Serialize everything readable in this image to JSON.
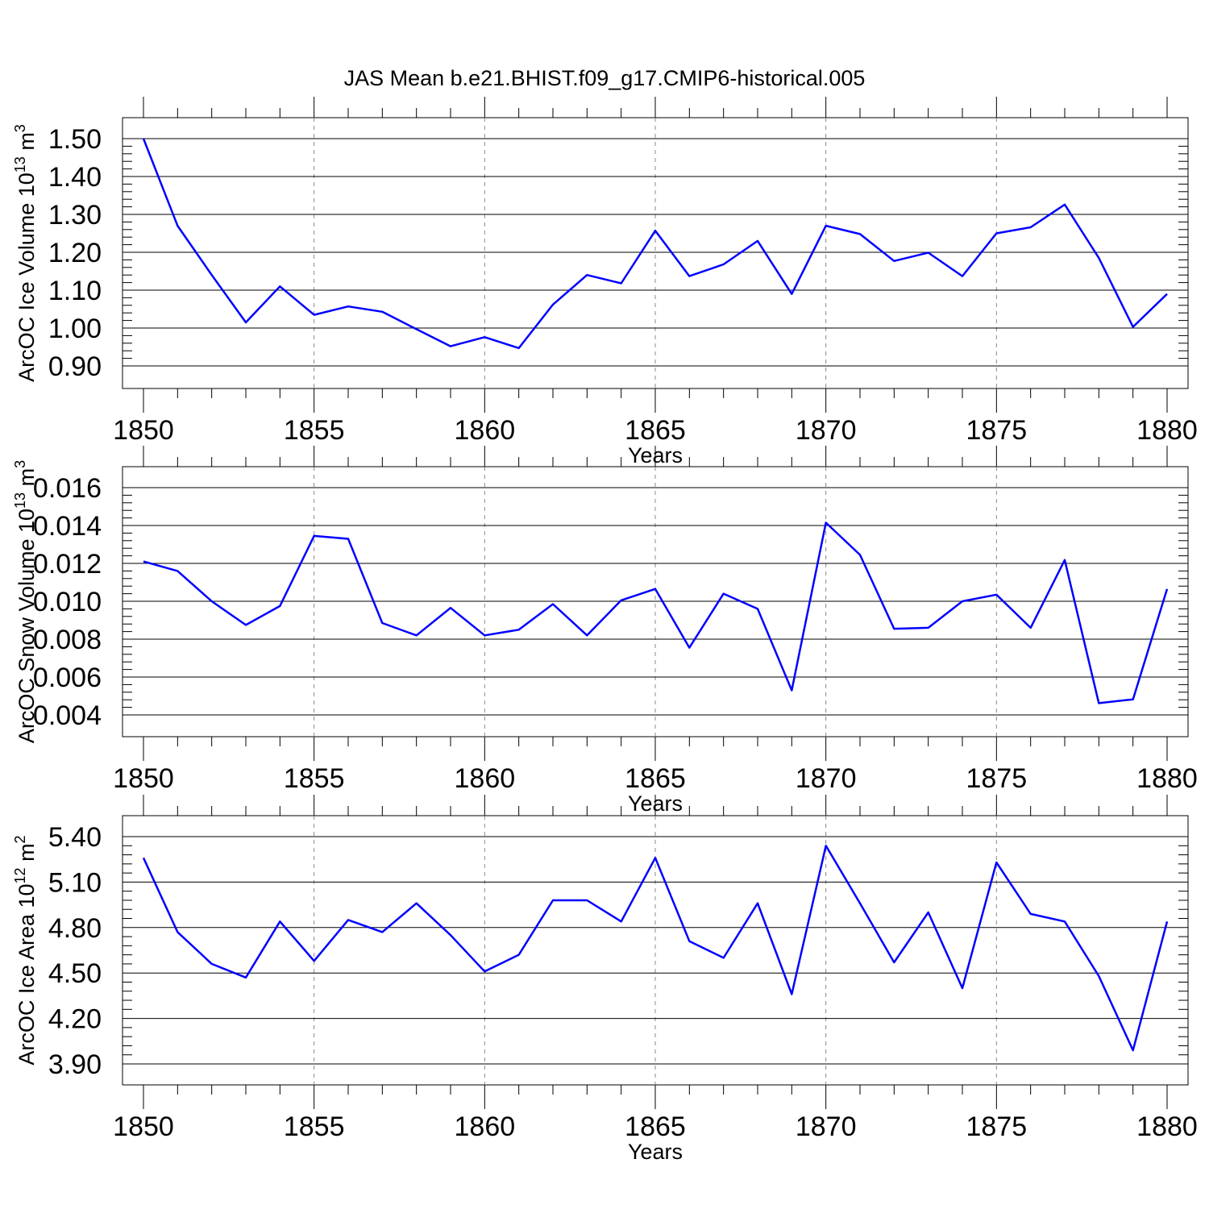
{
  "title": "JAS Mean b.e21.BHIST.f09_g17.CMIP6-historical.005",
  "colors": {
    "line": "#0000ff",
    "grid": "#888888",
    "axes": "#000000"
  },
  "chart_data": [
    {
      "type": "line",
      "xlabel": "Years",
      "ylabel": "ArcOC Ice Volume 10",
      "ylabel_exp": "13",
      "ylabel_unit": " m",
      "ylabel_unit_exp": "3",
      "xlim": [
        1850,
        1880
      ],
      "ylim": [
        0.9,
        1.5
      ],
      "xticks": [
        "1850",
        "1855",
        "1860",
        "1865",
        "1870",
        "1875",
        "1880"
      ],
      "yticks": [
        "0.90",
        "1.00",
        "1.10",
        "1.20",
        "1.30",
        "1.40",
        "1.50"
      ],
      "grid": "dashed vertical at major x ticks",
      "x": [
        1850,
        1851,
        1852,
        1853,
        1854,
        1855,
        1856,
        1857,
        1858,
        1859,
        1860,
        1861,
        1862,
        1863,
        1864,
        1865,
        1866,
        1867,
        1868,
        1869,
        1870,
        1871,
        1872,
        1873,
        1874,
        1875,
        1876,
        1877,
        1878,
        1879,
        1880
      ],
      "values": [
        1.5,
        1.27,
        1.14,
        1.015,
        1.11,
        1.035,
        1.057,
        1.043,
        0.997,
        0.952,
        0.976,
        0.947,
        1.062,
        1.14,
        1.118,
        1.257,
        1.137,
        1.168,
        1.23,
        1.09,
        1.27,
        1.248,
        1.177,
        1.199,
        1.137,
        1.25,
        1.266,
        1.326,
        1.185,
        1.003,
        1.09
      ]
    },
    {
      "type": "line",
      "xlabel": "Years",
      "ylabel": "ArcOC Snow Volume 10",
      "ylabel_exp": "13",
      "ylabel_unit": " m",
      "ylabel_unit_exp": "3",
      "xlim": [
        1850,
        1880
      ],
      "ylim": [
        0.004,
        0.016
      ],
      "xticks": [
        "1850",
        "1855",
        "1860",
        "1865",
        "1870",
        "1875",
        "1880"
      ],
      "yticks": [
        "0.004",
        "0.006",
        "0.008",
        "0.010",
        "0.012",
        "0.014",
        "0.016"
      ],
      "grid": "dashed vertical at major x ticks",
      "x": [
        1850,
        1851,
        1852,
        1853,
        1854,
        1855,
        1856,
        1857,
        1858,
        1859,
        1860,
        1861,
        1862,
        1863,
        1864,
        1865,
        1866,
        1867,
        1868,
        1869,
        1870,
        1871,
        1872,
        1873,
        1874,
        1875,
        1876,
        1877,
        1878,
        1879,
        1880
      ],
      "values": [
        0.0121,
        0.0116,
        0.01,
        0.00875,
        0.00975,
        0.01345,
        0.0133,
        0.00885,
        0.0082,
        0.00965,
        0.0082,
        0.0085,
        0.00985,
        0.0082,
        0.01005,
        0.01065,
        0.00755,
        0.0104,
        0.0096,
        0.0053,
        0.01415,
        0.01245,
        0.00855,
        0.0086,
        0.01,
        0.01035,
        0.0086,
        0.01218,
        0.00462,
        0.00482,
        0.01065
      ]
    },
    {
      "type": "line",
      "xlabel": "Years",
      "ylabel": "ArcOC Ice Area 10",
      "ylabel_exp": "12",
      "ylabel_unit": " m",
      "ylabel_unit_exp": "2",
      "xlim": [
        1850,
        1880
      ],
      "ylim": [
        3.9,
        5.4
      ],
      "xticks": [
        "1850",
        "1855",
        "1860",
        "1865",
        "1870",
        "1875",
        "1880"
      ],
      "yticks": [
        "3.90",
        "4.20",
        "4.50",
        "4.80",
        "5.10",
        "5.40"
      ],
      "grid": "dashed vertical at major x ticks",
      "x": [
        1850,
        1851,
        1852,
        1853,
        1854,
        1855,
        1856,
        1857,
        1858,
        1859,
        1860,
        1861,
        1862,
        1863,
        1864,
        1865,
        1866,
        1867,
        1868,
        1869,
        1870,
        1871,
        1872,
        1873,
        1874,
        1875,
        1876,
        1877,
        1878,
        1879,
        1880
      ],
      "values": [
        5.26,
        4.77,
        4.56,
        4.47,
        4.84,
        4.58,
        4.85,
        4.77,
        4.96,
        4.75,
        4.51,
        4.62,
        4.98,
        4.98,
        4.84,
        5.26,
        4.71,
        4.6,
        4.96,
        4.36,
        5.34,
        4.96,
        4.57,
        4.9,
        4.4,
        5.23,
        4.89,
        4.84,
        4.48,
        3.99,
        4.84
      ]
    }
  ]
}
